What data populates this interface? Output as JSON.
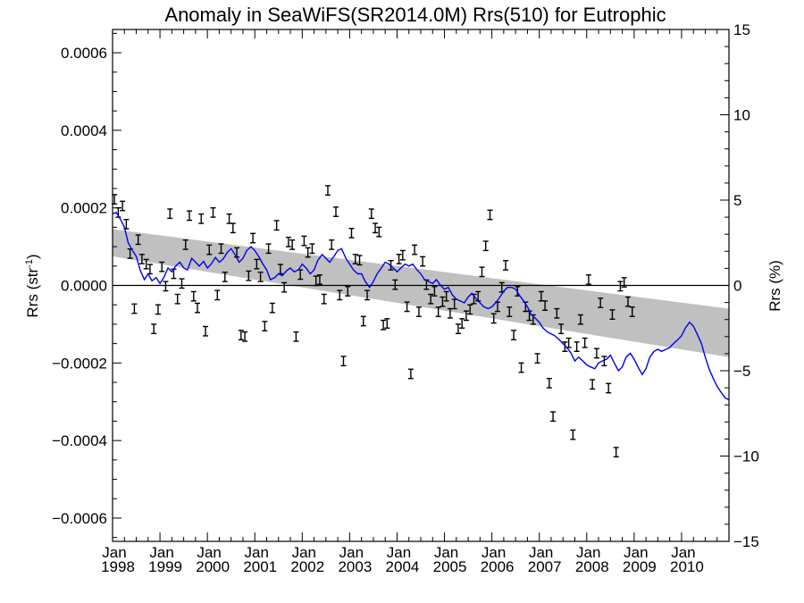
{
  "chart_data": {
    "type": "line",
    "title": "Anomaly in SeaWiFS(SR2014.0M) Rrs(510) for Eutrophic",
    "ylabel_left": "Rrs (str",
    "ylabel_left_sup": "-1",
    "ylabel_left_close": ")",
    "ylabel_right": "Rrs (%)",
    "x_start": "1998-01",
    "x_end": "2010-12",
    "xlim": [
      1998.0,
      2011.0
    ],
    "ylim_left": [
      -0.00066,
      0.00066
    ],
    "ylim_right": [
      -15,
      15
    ],
    "x_ticks": [
      {
        "x": 1998,
        "top": "Jan",
        "bottom": "1998"
      },
      {
        "x": 1999,
        "top": "Jan",
        "bottom": "1999"
      },
      {
        "x": 2000,
        "top": "Jan",
        "bottom": "2000"
      },
      {
        "x": 2001,
        "top": "Jan",
        "bottom": "2001"
      },
      {
        "x": 2002,
        "top": "Jan",
        "bottom": "2002"
      },
      {
        "x": 2003,
        "top": "Jan",
        "bottom": "2003"
      },
      {
        "x": 2004,
        "top": "Jan",
        "bottom": "2004"
      },
      {
        "x": 2005,
        "top": "Jan",
        "bottom": "2005"
      },
      {
        "x": 2006,
        "top": "Jan",
        "bottom": "2006"
      },
      {
        "x": 2007,
        "top": "Jan",
        "bottom": "2007"
      },
      {
        "x": 2008,
        "top": "Jan",
        "bottom": "2008"
      },
      {
        "x": 2009,
        "top": "Jan",
        "bottom": "2009"
      },
      {
        "x": 2010,
        "top": "Jan",
        "bottom": "2010"
      }
    ],
    "y_ticks_left": [
      {
        "v": 0.0006,
        "label": "0.0006"
      },
      {
        "v": 0.0004,
        "label": "0.0004"
      },
      {
        "v": 0.0002,
        "label": "0.0002"
      },
      {
        "v": 0.0,
        "label": "0.0000"
      },
      {
        "v": -0.0002,
        "label": "−0.0002"
      },
      {
        "v": -0.0004,
        "label": "−0.0004"
      },
      {
        "v": -0.0006,
        "label": "−0.0006"
      }
    ],
    "y_ticks_right": [
      {
        "v": 15,
        "label": "15"
      },
      {
        "v": 10,
        "label": "10"
      },
      {
        "v": 5,
        "label": "5"
      },
      {
        "v": 0,
        "label": "0"
      },
      {
        "v": -5,
        "label": "−5"
      },
      {
        "v": -10,
        "label": "−10"
      },
      {
        "v": -15,
        "label": "−15"
      }
    ],
    "zero_line": 0.0,
    "trend_band": {
      "x": [
        1998.0,
        2011.0
      ],
      "upper": [
        0.000145,
        -6e-05
      ],
      "lower": [
        7.5e-05,
        -0.000185
      ]
    },
    "error_bar_halfwidth": 1.2e-05,
    "monthly_points": [
      [
        1998.04,
        0.000222
      ],
      [
        1998.12,
        0.000188
      ],
      [
        1998.21,
        0.000205
      ],
      [
        1998.29,
        0.000158
      ],
      [
        1998.37,
        8.2e-05
      ],
      [
        1998.46,
        -6e-05
      ],
      [
        1998.54,
        0.000118
      ],
      [
        1998.62,
        6.8e-05
      ],
      [
        1998.71,
        5.5e-05
      ],
      [
        1998.79,
        4.2e-05
      ],
      [
        1998.87,
        -0.000112
      ],
      [
        1998.96,
        -6.2e-05
      ],
      [
        1999.04,
        4.8e-05
      ],
      [
        1999.12,
        -2e-06
      ],
      [
        1999.21,
        0.000185
      ],
      [
        1999.29,
        3e-05
      ],
      [
        1999.37,
        -3.5e-05
      ],
      [
        1999.46,
        5e-06
      ],
      [
        1999.54,
        0.000105
      ],
      [
        1999.62,
        0.00018
      ],
      [
        1999.71,
        -2.8e-05
      ],
      [
        1999.79,
        -5.8e-05
      ],
      [
        1999.87,
        0.000172
      ],
      [
        1999.96,
        -0.000118
      ],
      [
        2000.04,
        9.2e-05
      ],
      [
        2000.12,
        0.000188
      ],
      [
        2000.21,
        -2.5e-05
      ],
      [
        2000.29,
        9.5e-05
      ],
      [
        2000.37,
        2.2e-05
      ],
      [
        2000.46,
        0.000172
      ],
      [
        2000.54,
        0.000148
      ],
      [
        2000.62,
        8.5e-05
      ],
      [
        2000.71,
        -0.000128
      ],
      [
        2000.79,
        -0.000132
      ],
      [
        2000.87,
        2.5e-05
      ],
      [
        2000.96,
        0.000122
      ],
      [
        2001.04,
        5.5e-05
      ],
      [
        2001.12,
        2.2e-05
      ],
      [
        2001.21,
        -0.000105
      ],
      [
        2001.29,
        9.5e-05
      ],
      [
        2001.37,
        -5.8e-05
      ],
      [
        2001.46,
        0.000155
      ],
      [
        2001.54,
        4.2e-05
      ],
      [
        2001.62,
        -5e-06
      ],
      [
        2001.71,
        0.000112
      ],
      [
        2001.79,
        0.000105
      ],
      [
        2001.87,
        -0.000132
      ],
      [
        2001.96,
        2.8e-05
      ],
      [
        2002.04,
        0.000115
      ],
      [
        2002.12,
        8.5e-05
      ],
      [
        2002.21,
        9.5e-05
      ],
      [
        2002.29,
        1.2e-05
      ],
      [
        2002.37,
        1.5e-05
      ],
      [
        2002.46,
        -3.5e-05
      ],
      [
        2002.54,
        0.000245
      ],
      [
        2002.62,
        0.000105
      ],
      [
        2002.71,
        0.00019
      ],
      [
        2002.79,
        -2.5e-05
      ],
      [
        2002.87,
        -0.000195
      ],
      [
        2002.96,
        -1.5e-05
      ],
      [
        2003.04,
        0.000135
      ],
      [
        2003.12,
        6.8e-05
      ],
      [
        2003.21,
        6.5e-05
      ],
      [
        2003.29,
        -9.2e-05
      ],
      [
        2003.37,
        -2.5e-05
      ],
      [
        2003.46,
        0.000185
      ],
      [
        2003.54,
        0.000148
      ],
      [
        2003.62,
        0.000138
      ],
      [
        2003.71,
        -0.000102
      ],
      [
        2003.79,
        -9.8e-05
      ],
      [
        2003.87,
        5.2e-05
      ],
      [
        2003.96,
        2e-06
      ],
      [
        2004.04,
        6.8e-05
      ],
      [
        2004.12,
        7.8e-05
      ],
      [
        2004.21,
        -5.5e-05
      ],
      [
        2004.29,
        -0.000228
      ],
      [
        2004.37,
        9.2e-05
      ],
      [
        2004.46,
        -6.8e-05
      ],
      [
        2004.54,
        6.2e-05
      ],
      [
        2004.62,
        2e-06
      ],
      [
        2004.71,
        -3.5e-05
      ],
      [
        2004.79,
        -1.5e-05
      ],
      [
        2004.87,
        -6.8e-05
      ],
      [
        2004.96,
        -4.2e-05
      ],
      [
        2005.04,
        -2.8e-05
      ],
      [
        2005.12,
        -7.2e-05
      ],
      [
        2005.21,
        -4.8e-05
      ],
      [
        2005.29,
        -0.000112
      ],
      [
        2005.37,
        -9.8e-05
      ],
      [
        2005.46,
        -7.8e-05
      ],
      [
        2005.54,
        -6.2e-05
      ],
      [
        2005.62,
        -3.5e-05
      ],
      [
        2005.71,
        -2.8e-05
      ],
      [
        2005.79,
        3.5e-05
      ],
      [
        2005.87,
        0.000102
      ],
      [
        2005.96,
        0.000182
      ],
      [
        2006.04,
        -8.5e-05
      ],
      [
        2006.12,
        -5.5e-05
      ],
      [
        2006.21,
        -5e-06
      ],
      [
        2006.29,
        5.2e-05
      ],
      [
        2006.37,
        -6.8e-05
      ],
      [
        2006.46,
        -0.000128
      ],
      [
        2006.54,
        -1.5e-05
      ],
      [
        2006.62,
        -0.000212
      ],
      [
        2006.71,
        -5.5e-05
      ],
      [
        2006.79,
        -7.8e-05
      ],
      [
        2006.87,
        -8.8e-05
      ],
      [
        2006.96,
        -0.000188
      ],
      [
        2007.04,
        -2.8e-05
      ],
      [
        2007.12,
        -5.2e-05
      ],
      [
        2007.21,
        -0.000252
      ],
      [
        2007.29,
        -0.000338
      ],
      [
        2007.37,
        -7.2e-05
      ],
      [
        2007.46,
        -0.000112
      ],
      [
        2007.54,
        -0.000158
      ],
      [
        2007.62,
        -0.000148
      ],
      [
        2007.71,
        -0.000385
      ],
      [
        2007.79,
        -0.000158
      ],
      [
        2007.87,
        -8.8e-05
      ],
      [
        2007.96,
        -0.000148
      ],
      [
        2008.04,
        1.5e-05
      ],
      [
        2008.12,
        -0.000255
      ],
      [
        2008.21,
        -0.000175
      ],
      [
        2008.29,
        -4.5e-05
      ],
      [
        2008.37,
        -0.000195
      ],
      [
        2008.46,
        -0.000265
      ],
      [
        2008.54,
        -7.5e-05
      ],
      [
        2008.62,
        -0.00043
      ],
      [
        2008.71,
        -2e-06
      ],
      [
        2008.79,
        8e-06
      ],
      [
        2008.87,
        -4.2e-05
      ],
      [
        2008.96,
        -6.8e-05
      ]
    ],
    "blue_line": [
      [
        1998.0,
        0.000185
      ],
      [
        1998.08,
        0.000188
      ],
      [
        1998.17,
        0.00017
      ],
      [
        1998.25,
        0.00015
      ],
      [
        1998.33,
        0.00011
      ],
      [
        1998.42,
        9e-05
      ],
      [
        1998.5,
        7.5e-05
      ],
      [
        1998.58,
        4e-05
      ],
      [
        1998.67,
        1.5e-05
      ],
      [
        1998.75,
        3e-05
      ],
      [
        1998.83,
        1.2e-05
      ],
      [
        1998.92,
        2e-05
      ],
      [
        1999.0,
        5e-06
      ],
      [
        1999.08,
        2e-05
      ],
      [
        1999.17,
        4.5e-05
      ],
      [
        1999.25,
        3.5e-05
      ],
      [
        1999.33,
        5e-05
      ],
      [
        1999.42,
        6e-05
      ],
      [
        1999.5,
        4.5e-05
      ],
      [
        1999.58,
        4e-05
      ],
      [
        1999.67,
        7e-05
      ],
      [
        1999.75,
        6e-05
      ],
      [
        1999.83,
        5e-05
      ],
      [
        1999.92,
        6.2e-05
      ],
      [
        2000.0,
        4.5e-05
      ],
      [
        2000.08,
        5.5e-05
      ],
      [
        2000.17,
        7.2e-05
      ],
      [
        2000.25,
        6e-05
      ],
      [
        2000.33,
        6.8e-05
      ],
      [
        2000.42,
        8.5e-05
      ],
      [
        2000.5,
        9.5e-05
      ],
      [
        2000.58,
        8e-05
      ],
      [
        2000.67,
        6e-05
      ],
      [
        2000.75,
        7e-05
      ],
      [
        2000.83,
        9e-05
      ],
      [
        2000.92,
        0.0001
      ],
      [
        2001.0,
        9e-05
      ],
      [
        2001.08,
        7.5e-05
      ],
      [
        2001.17,
        5.5e-05
      ],
      [
        2001.25,
        4e-05
      ],
      [
        2001.33,
        1.5e-05
      ],
      [
        2001.42,
        2e-05
      ],
      [
        2001.5,
        3e-05
      ],
      [
        2001.58,
        2.5e-05
      ],
      [
        2001.67,
        3.8e-05
      ],
      [
        2001.75,
        4.5e-05
      ],
      [
        2001.83,
        3.5e-05
      ],
      [
        2001.92,
        4e-05
      ],
      [
        2002.0,
        5.5e-05
      ],
      [
        2002.08,
        4.5e-05
      ],
      [
        2002.17,
        3e-05
      ],
      [
        2002.25,
        4e-05
      ],
      [
        2002.33,
        6.5e-05
      ],
      [
        2002.42,
        8e-05
      ],
      [
        2002.5,
        7e-05
      ],
      [
        2002.58,
        6e-05
      ],
      [
        2002.67,
        7.5e-05
      ],
      [
        2002.75,
        9e-05
      ],
      [
        2002.83,
        9.5e-05
      ],
      [
        2002.92,
        7e-05
      ],
      [
        2003.0,
        5.5e-05
      ],
      [
        2003.08,
        4e-05
      ],
      [
        2003.17,
        3e-05
      ],
      [
        2003.25,
        3e-05
      ],
      [
        2003.33,
        1e-05
      ],
      [
        2003.42,
        -5e-06
      ],
      [
        2003.5,
        1e-05
      ],
      [
        2003.58,
        3e-05
      ],
      [
        2003.67,
        4.5e-05
      ],
      [
        2003.75,
        6e-05
      ],
      [
        2003.83,
        5.5e-05
      ],
      [
        2003.92,
        4.5e-05
      ],
      [
        2004.0,
        3.5e-05
      ],
      [
        2004.08,
        4.5e-05
      ],
      [
        2004.17,
        5.5e-05
      ],
      [
        2004.25,
        5e-05
      ],
      [
        2004.33,
        5.5e-05
      ],
      [
        2004.42,
        4e-05
      ],
      [
        2004.5,
        3e-05
      ],
      [
        2004.58,
        1.5e-05
      ],
      [
        2004.67,
        1e-05
      ],
      [
        2004.75,
        5e-06
      ],
      [
        2004.83,
        1.5e-05
      ],
      [
        2004.92,
        0.0
      ],
      [
        2005.0,
        -1e-05
      ],
      [
        2005.08,
        -5e-06
      ],
      [
        2005.17,
        -2.5e-05
      ],
      [
        2005.25,
        -3.5e-05
      ],
      [
        2005.33,
        -4e-05
      ],
      [
        2005.42,
        -4.5e-05
      ],
      [
        2005.5,
        -3e-05
      ],
      [
        2005.58,
        -2e-05
      ],
      [
        2005.67,
        -3.5e-05
      ],
      [
        2005.75,
        -4.5e-05
      ],
      [
        2005.83,
        -5.5e-05
      ],
      [
        2005.92,
        -6e-05
      ],
      [
        2006.0,
        -5.5e-05
      ],
      [
        2006.08,
        -4.5e-05
      ],
      [
        2006.17,
        -3e-05
      ],
      [
        2006.25,
        -1.5e-05
      ],
      [
        2006.33,
        -5e-06
      ],
      [
        2006.42,
        -5e-06
      ],
      [
        2006.5,
        -1e-05
      ],
      [
        2006.58,
        -2.5e-05
      ],
      [
        2006.67,
        -4e-05
      ],
      [
        2006.75,
        -5.5e-05
      ],
      [
        2006.83,
        -7.5e-05
      ],
      [
        2006.92,
        -8.5e-05
      ],
      [
        2007.0,
        -9.5e-05
      ],
      [
        2007.08,
        -0.00011
      ],
      [
        2007.17,
        -0.00012
      ],
      [
        2007.25,
        -0.000125
      ],
      [
        2007.33,
        -0.00013
      ],
      [
        2007.42,
        -0.00014
      ],
      [
        2007.5,
        -0.00015
      ],
      [
        2007.58,
        -0.00016
      ],
      [
        2007.67,
        -0.000175
      ],
      [
        2007.75,
        -0.000195
      ],
      [
        2007.83,
        -0.000185
      ],
      [
        2007.92,
        -0.000195
      ],
      [
        2008.0,
        -0.000205
      ],
      [
        2008.08,
        -0.00021
      ],
      [
        2008.17,
        -0.000215
      ],
      [
        2008.25,
        -0.0002
      ],
      [
        2008.33,
        -0.000195
      ],
      [
        2008.42,
        -0.00019
      ],
      [
        2008.5,
        -0.00018
      ],
      [
        2008.58,
        -0.0002
      ],
      [
        2008.67,
        -0.00022
      ],
      [
        2008.75,
        -0.00021
      ],
      [
        2008.83,
        -0.000185
      ],
      [
        2008.92,
        -0.000175
      ],
      [
        2009.0,
        -0.00019
      ],
      [
        2009.08,
        -0.00021
      ],
      [
        2009.17,
        -0.00023
      ],
      [
        2009.25,
        -0.000215
      ],
      [
        2009.33,
        -0.000185
      ],
      [
        2009.42,
        -0.00017
      ],
      [
        2009.5,
        -0.000165
      ],
      [
        2009.58,
        -0.00017
      ],
      [
        2009.67,
        -0.000165
      ],
      [
        2009.75,
        -0.00016
      ],
      [
        2009.83,
        -0.00015
      ],
      [
        2009.92,
        -0.00014
      ],
      [
        2010.0,
        -0.00013
      ],
      [
        2010.08,
        -0.00011
      ],
      [
        2010.17,
        -9.5e-05
      ],
      [
        2010.25,
        -0.000105
      ],
      [
        2010.33,
        -0.000125
      ],
      [
        2010.42,
        -0.00015
      ],
      [
        2010.5,
        -0.000185
      ],
      [
        2010.58,
        -0.000215
      ],
      [
        2010.67,
        -0.00024
      ],
      [
        2010.75,
        -0.00026
      ],
      [
        2010.83,
        -0.000275
      ],
      [
        2010.92,
        -0.00029
      ],
      [
        2011.0,
        -0.000295
      ]
    ]
  }
}
